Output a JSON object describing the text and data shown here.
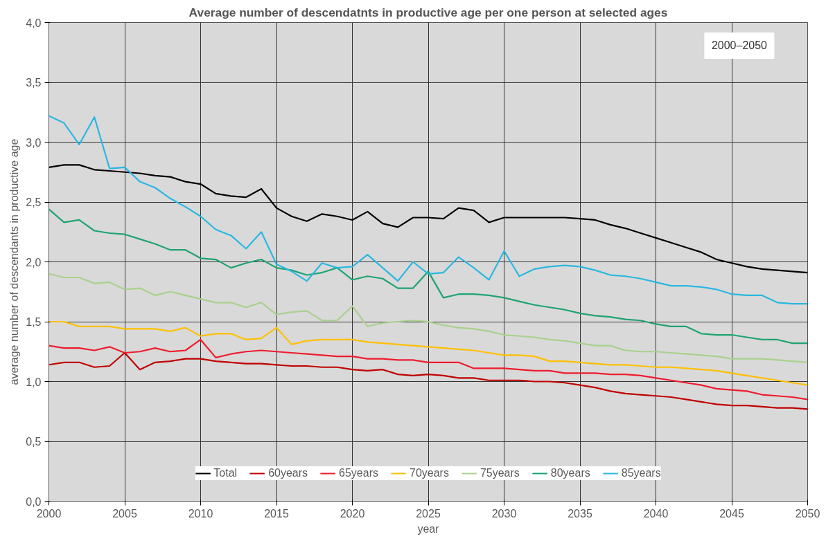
{
  "chart_data": {
    "type": "line",
    "title": "Average number of descendatnts in productive age per one person at selected ages",
    "xlabel": "year",
    "ylabel": "average number of descendants in productive age",
    "annotations": [
      "2000–2050"
    ],
    "x": [
      2000,
      2001,
      2002,
      2003,
      2004,
      2005,
      2006,
      2007,
      2008,
      2009,
      2010,
      2011,
      2012,
      2013,
      2014,
      2015,
      2016,
      2017,
      2018,
      2019,
      2020,
      2021,
      2022,
      2023,
      2024,
      2025,
      2026,
      2027,
      2028,
      2029,
      2030,
      2031,
      2032,
      2033,
      2034,
      2035,
      2036,
      2037,
      2038,
      2039,
      2040,
      2041,
      2042,
      2043,
      2044,
      2045,
      2046,
      2047,
      2048,
      2049,
      2050
    ],
    "xlim": [
      2000,
      2050
    ],
    "xticks": [
      2000,
      2005,
      2010,
      2015,
      2020,
      2025,
      2030,
      2035,
      2040,
      2045,
      2050
    ],
    "ylim": [
      0,
      4
    ],
    "yticks": [
      {
        "value": 0,
        "label": "0,0"
      },
      {
        "value": 0.5,
        "label": "0,5"
      },
      {
        "value": 1,
        "label": "1,0"
      },
      {
        "value": 1.5,
        "label": "1,5"
      },
      {
        "value": 2,
        "label": "2,0"
      },
      {
        "value": 2.5,
        "label": "2,5"
      },
      {
        "value": 3,
        "label": "3,0"
      },
      {
        "value": 3.5,
        "label": "3,5"
      },
      {
        "value": 4,
        "label": "4,0"
      }
    ],
    "grid": true,
    "legend": "bottom",
    "marker": "none",
    "line_style": "solid",
    "series": [
      {
        "name": "Total",
        "color": "#000000",
        "values": [
          2.79,
          2.81,
          2.81,
          2.77,
          2.76,
          2.75,
          2.74,
          2.72,
          2.71,
          2.67,
          2.65,
          2.57,
          2.55,
          2.54,
          2.61,
          2.45,
          2.38,
          2.34,
          2.4,
          2.38,
          2.35,
          2.42,
          2.32,
          2.29,
          2.37,
          2.37,
          2.36,
          2.45,
          2.43,
          2.33,
          2.37,
          2.37,
          2.37,
          2.37,
          2.37,
          2.36,
          2.35,
          2.31,
          2.28,
          2.24,
          2.2,
          2.16,
          2.12,
          2.08,
          2.02,
          1.99,
          1.96,
          1.94,
          1.93,
          1.92,
          1.91
        ]
      },
      {
        "name": "60years",
        "color": "#c00000",
        "values": [
          1.14,
          1.16,
          1.16,
          1.12,
          1.13,
          1.24,
          1.1,
          1.16,
          1.17,
          1.19,
          1.19,
          1.17,
          1.16,
          1.15,
          1.15,
          1.14,
          1.13,
          1.13,
          1.12,
          1.12,
          1.1,
          1.09,
          1.1,
          1.06,
          1.05,
          1.06,
          1.05,
          1.03,
          1.03,
          1.01,
          1.01,
          1.01,
          1.0,
          1.0,
          0.99,
          0.97,
          0.95,
          0.92,
          0.9,
          0.89,
          0.88,
          0.87,
          0.85,
          0.83,
          0.81,
          0.8,
          0.8,
          0.79,
          0.78,
          0.78,
          0.77
        ]
      },
      {
        "name": "65years",
        "color": "#ee1c2e",
        "values": [
          1.3,
          1.28,
          1.28,
          1.26,
          1.29,
          1.24,
          1.25,
          1.28,
          1.25,
          1.26,
          1.35,
          1.2,
          1.23,
          1.25,
          1.26,
          1.25,
          1.24,
          1.23,
          1.22,
          1.21,
          1.21,
          1.19,
          1.19,
          1.18,
          1.18,
          1.16,
          1.16,
          1.16,
          1.11,
          1.11,
          1.11,
          1.1,
          1.09,
          1.09,
          1.07,
          1.07,
          1.07,
          1.06,
          1.06,
          1.05,
          1.03,
          1.01,
          0.99,
          0.97,
          0.94,
          0.93,
          0.92,
          0.89,
          0.88,
          0.87,
          0.85
        ]
      },
      {
        "name": "70years",
        "color": "#ffc000",
        "values": [
          1.5,
          1.5,
          1.46,
          1.46,
          1.46,
          1.44,
          1.44,
          1.44,
          1.42,
          1.45,
          1.38,
          1.4,
          1.4,
          1.35,
          1.36,
          1.45,
          1.31,
          1.34,
          1.35,
          1.35,
          1.35,
          1.33,
          1.32,
          1.31,
          1.3,
          1.29,
          1.28,
          1.27,
          1.26,
          1.24,
          1.22,
          1.22,
          1.21,
          1.17,
          1.17,
          1.16,
          1.15,
          1.14,
          1.14,
          1.13,
          1.12,
          1.12,
          1.11,
          1.1,
          1.09,
          1.07,
          1.05,
          1.03,
          1.01,
          0.99,
          0.97
        ]
      },
      {
        "name": "75years",
        "color": "#a9d18e",
        "values": [
          1.9,
          1.87,
          1.87,
          1.82,
          1.83,
          1.77,
          1.78,
          1.72,
          1.75,
          1.72,
          1.69,
          1.66,
          1.66,
          1.62,
          1.66,
          1.56,
          1.58,
          1.59,
          1.51,
          1.51,
          1.63,
          1.46,
          1.49,
          1.5,
          1.51,
          1.5,
          1.47,
          1.45,
          1.44,
          1.42,
          1.39,
          1.38,
          1.37,
          1.35,
          1.34,
          1.32,
          1.3,
          1.3,
          1.26,
          1.25,
          1.25,
          1.24,
          1.23,
          1.22,
          1.21,
          1.19,
          1.19,
          1.19,
          1.18,
          1.17,
          1.16
        ]
      },
      {
        "name": "80years",
        "color": "#1fa371",
        "values": [
          2.44,
          2.33,
          2.35,
          2.26,
          2.24,
          2.23,
          2.19,
          2.15,
          2.1,
          2.1,
          2.03,
          2.02,
          1.95,
          1.99,
          2.02,
          1.95,
          1.93,
          1.89,
          1.91,
          1.95,
          1.85,
          1.88,
          1.86,
          1.78,
          1.78,
          1.92,
          1.7,
          1.73,
          1.73,
          1.72,
          1.7,
          1.67,
          1.64,
          1.62,
          1.6,
          1.57,
          1.55,
          1.54,
          1.52,
          1.51,
          1.48,
          1.46,
          1.46,
          1.4,
          1.39,
          1.39,
          1.37,
          1.35,
          1.35,
          1.32,
          1.32
        ]
      },
      {
        "name": "85years",
        "color": "#2ab7e0",
        "values": [
          3.22,
          3.16,
          2.98,
          3.21,
          2.78,
          2.79,
          2.67,
          2.62,
          2.53,
          2.46,
          2.38,
          2.27,
          2.22,
          2.11,
          2.25,
          1.98,
          1.92,
          1.84,
          1.99,
          1.95,
          1.96,
          2.06,
          1.95,
          1.84,
          2.0,
          1.9,
          1.91,
          2.04,
          1.95,
          1.85,
          2.09,
          1.88,
          1.94,
          1.96,
          1.97,
          1.96,
          1.93,
          1.89,
          1.88,
          1.86,
          1.83,
          1.8,
          1.8,
          1.79,
          1.77,
          1.73,
          1.72,
          1.72,
          1.66,
          1.65,
          1.65
        ]
      }
    ]
  }
}
